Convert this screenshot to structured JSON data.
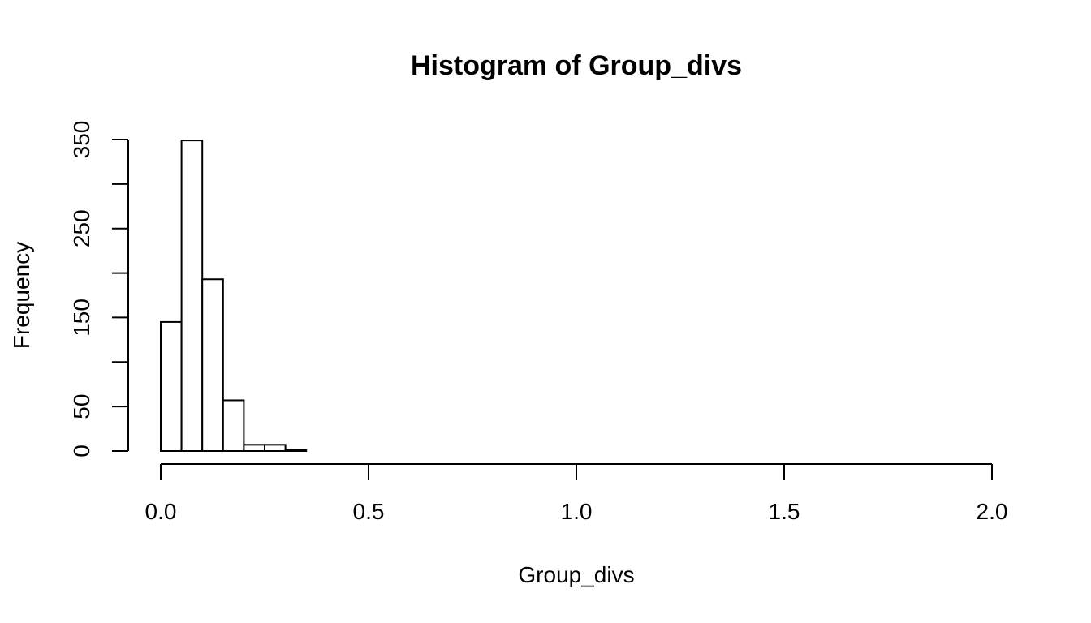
{
  "chart_data": {
    "type": "bar",
    "title": "Histogram of Group_divs",
    "xlabel": "Group_divs",
    "ylabel": "Frequency",
    "xlim": [
      0,
      2
    ],
    "ylim": [
      0,
      350
    ],
    "x_ticks": [
      0,
      0.5,
      1,
      1.5,
      2
    ],
    "x_tick_labels": [
      "0.0",
      "0.5",
      "1.0",
      "1.5",
      "2.0"
    ],
    "y_ticks": [
      0,
      50,
      100,
      150,
      200,
      250,
      300,
      350
    ],
    "y_tick_labels": [
      "0",
      "50",
      "",
      "150",
      "",
      "250",
      "",
      "350"
    ],
    "bin_edges": [
      0,
      0.05,
      0.1,
      0.15,
      0.2,
      0.25,
      0.3,
      0.35
    ],
    "counts": [
      145,
      349,
      193,
      57,
      7,
      7,
      1
    ],
    "grid": false,
    "legend": "none"
  }
}
